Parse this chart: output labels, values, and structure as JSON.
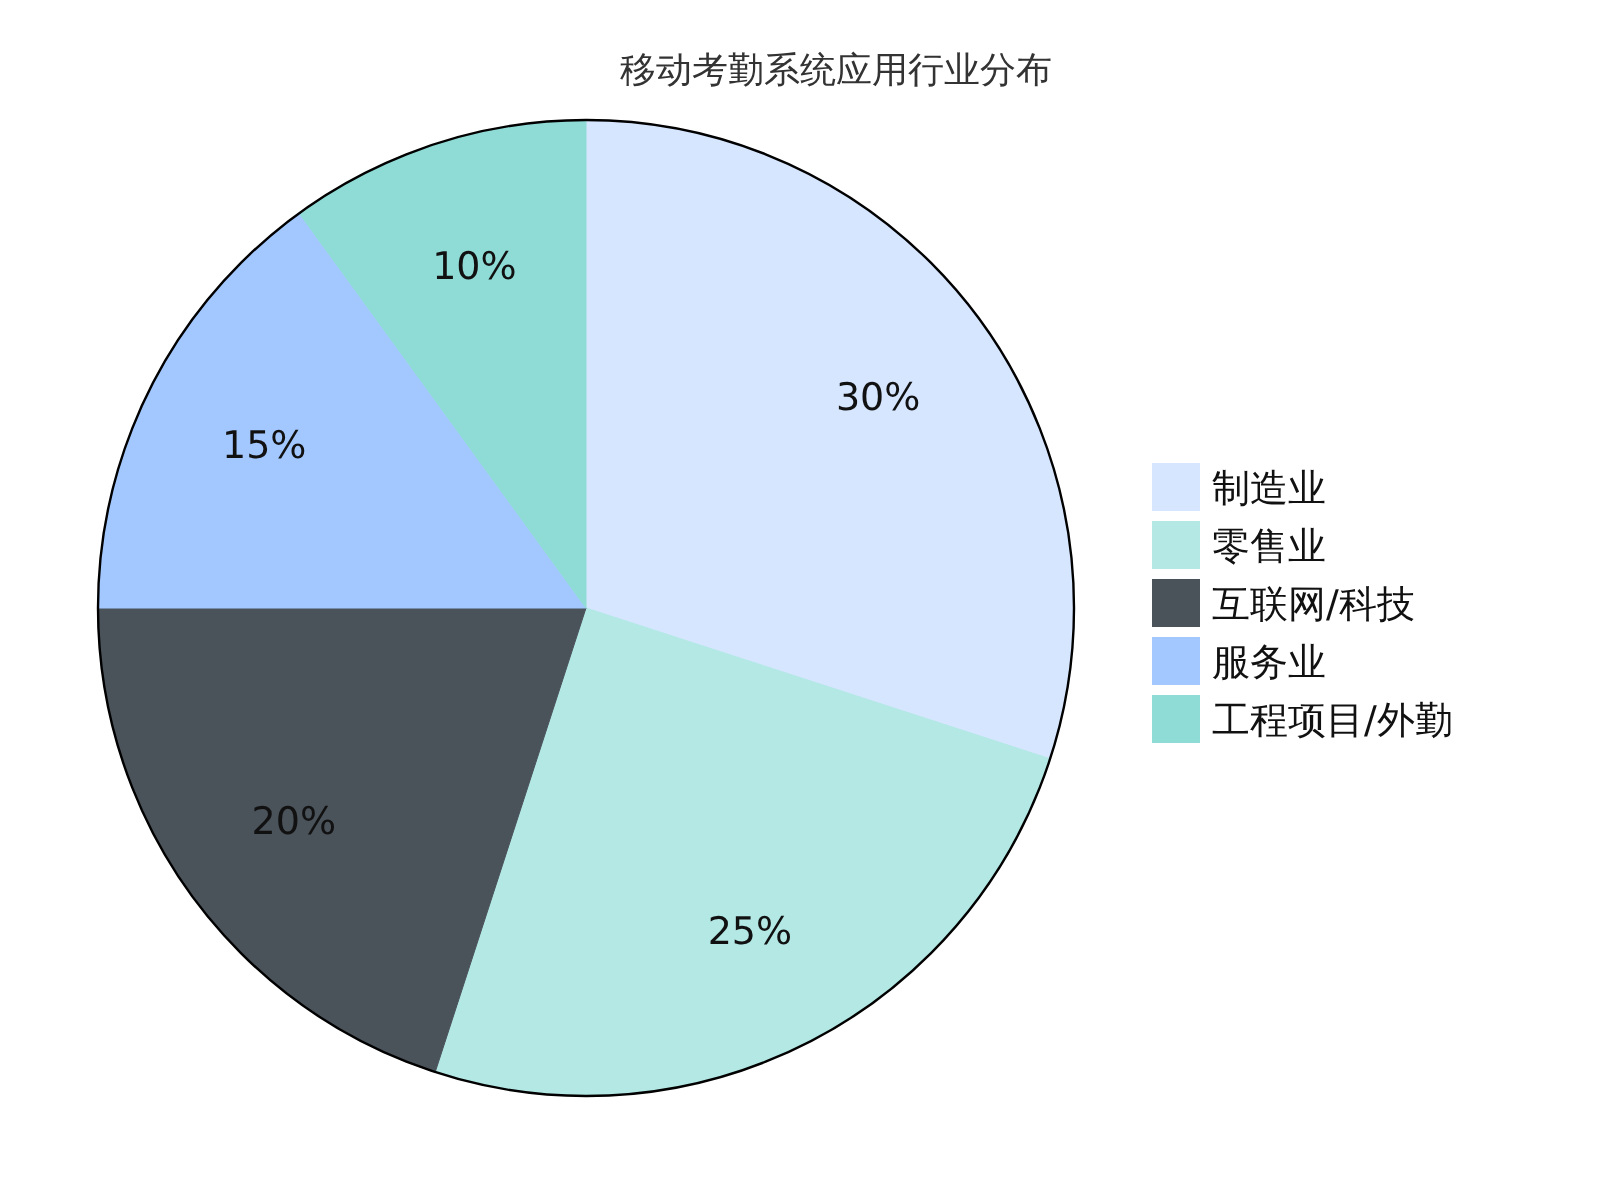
{
  "chart_data": {
    "type": "pie",
    "title": "移动考勤系统应用行业分布",
    "categories": [
      "制造业",
      "零售业",
      "互联网/科技",
      "服务业",
      "工程项目/外勤"
    ],
    "values": [
      30,
      25,
      20,
      15,
      10
    ],
    "value_labels": [
      "30%",
      "25%",
      "20%",
      "15%",
      "10%"
    ],
    "colors": [
      "#d6e6ff",
      "#b3e8e5",
      "#4a525a",
      "#a3c8ff",
      "#8fdcd6"
    ],
    "legend": "right"
  }
}
